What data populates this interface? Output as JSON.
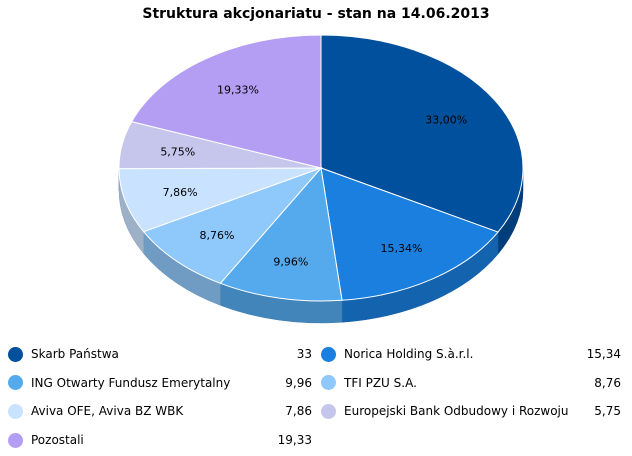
{
  "chart_data": {
    "type": "pie",
    "title": "Struktura akcjonariatu - stan na 14.06.2013",
    "slices": [
      {
        "name": "Skarb Państwa",
        "value": 33,
        "legend_value": "33",
        "label": "33,00%",
        "color": "#00509e"
      },
      {
        "name": "Norica Holding S.à.r.l.",
        "value": 15.34,
        "legend_value": "15,34",
        "label": "15,34%",
        "color": "#1a7fdf"
      },
      {
        "name": "ING Otwarty Fundusz Emerytalny",
        "value": 9.96,
        "legend_value": "9,96",
        "label": "9,96%",
        "color": "#55aaee"
      },
      {
        "name": "TFI PZU S.A.",
        "value": 8.76,
        "legend_value": "8,76",
        "label": "8,76%",
        "color": "#8fc8fb"
      },
      {
        "name": "Aviva OFE, Aviva BZ WBK",
        "value": 7.86,
        "legend_value": "7,86",
        "label": "7,86%",
        "color": "#c8e2ff"
      },
      {
        "name": "Europejski Bank Odbudowy i Rozwoju",
        "value": 5.75,
        "legend_value": "5,75",
        "label": "5,75%",
        "color": "#c6c6ec"
      },
      {
        "name": "Pozostali",
        "value": 19.33,
        "legend_value": "19,33",
        "label": "19,33%",
        "color": "#b49ef4"
      }
    ],
    "legend_placement": "bottom"
  }
}
